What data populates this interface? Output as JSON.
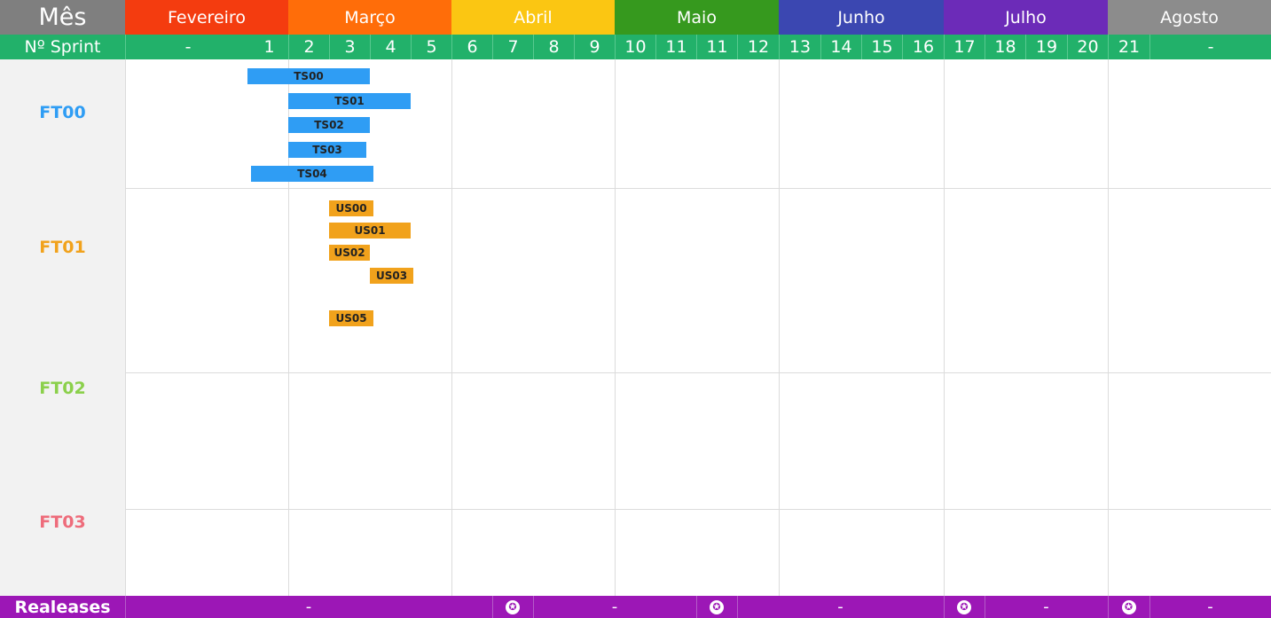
{
  "header": {
    "month_title": "Mês",
    "sprint_title": "Nº Sprint"
  },
  "months": [
    {
      "label": "Fevereiro",
      "color": "#f43c0f"
    },
    {
      "label": "Março",
      "color": "#ff6d09"
    },
    {
      "label": "Abril",
      "color": "#fbc612"
    },
    {
      "label": "Maio",
      "color": "#36991e"
    },
    {
      "label": "Junho",
      "color": "#3b47b1"
    },
    {
      "label": "Julho",
      "color": "#6c2bb8"
    },
    {
      "label": "Agosto",
      "color": "#8c8c8c"
    }
  ],
  "sprints": [
    "-",
    "1",
    "2",
    "3",
    "4",
    "5",
    "6",
    "7",
    "8",
    "9",
    "10",
    "11",
    "11",
    "12",
    "13",
    "14",
    "15",
    "16",
    "17",
    "18",
    "19",
    "20",
    "21",
    "-"
  ],
  "features": [
    {
      "label": "FT00",
      "color": "#2f9df4"
    },
    {
      "label": "FT01",
      "color": "#f1a21c"
    },
    {
      "label": "FT02",
      "color": "#8bd04b"
    },
    {
      "label": "FT03",
      "color": "#ee6c7b"
    }
  ],
  "tasks": {
    "ft00": [
      "TS00",
      "TS01",
      "TS02",
      "TS03",
      "TS04"
    ],
    "ft01": [
      "US00",
      "US01",
      "US02",
      "US03",
      "US05"
    ]
  },
  "releases": {
    "label": "Realeases",
    "cells": [
      "-",
      "✪",
      "-",
      "✪",
      "-",
      "✪",
      "-",
      "✪",
      "-"
    ]
  },
  "colors": {
    "sprint_row": "#22b16a",
    "release_row": "#9c17b6"
  }
}
